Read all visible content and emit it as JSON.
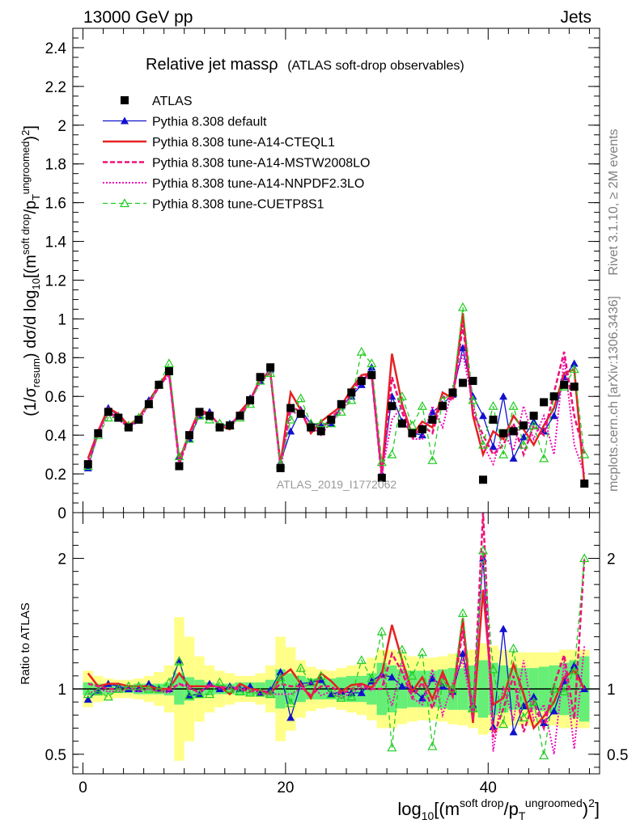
{
  "header": {
    "energy_label": "13000 GeV pp",
    "category_label": "Jets"
  },
  "side_labels": {
    "rivet": "Rivet 3.1.10, ≥ 2M events",
    "mcplots": "mcplots.cern.ch [arXiv:1306.3436]"
  },
  "analysis_id": "ATLAS_2019_I1772062",
  "chart_data": [
    {
      "type": "line",
      "title_main": "Relative jet massρ",
      "title_sub": "(ATLAS soft-drop observables)",
      "ylabel": "(1/σ_resum) dσ/d log10[(m^soft drop/pT^ungroomed)^2]",
      "xlabel": "log10[(m^soft drop/pT^ungroomed)^2]",
      "xlim": [
        -1,
        51
      ],
      "ylim": [
        0,
        2.5
      ],
      "yticks": [
        "0",
        "0.2",
        "0.4",
        "0.6",
        "0.8",
        "1",
        "1.2",
        "1.4",
        "1.6",
        "1.8",
        "2",
        "2.2",
        "2.4"
      ],
      "xticks": [
        "0",
        "20",
        "40"
      ],
      "legend_position": "top-left",
      "x": [
        0.5,
        1.5,
        2.5,
        3.5,
        4.5,
        5.5,
        6.5,
        7.5,
        8.5,
        9.5,
        10.5,
        11.5,
        12.5,
        13.5,
        14.5,
        15.5,
        16.5,
        17.5,
        18.5,
        19.5,
        20.5,
        21.5,
        22.5,
        23.5,
        24.5,
        25.5,
        26.5,
        27.5,
        28.5,
        29.5,
        30.5,
        31.5,
        32.5,
        33.5,
        34.5,
        35.5,
        36.5,
        37.5,
        38.5,
        39.5,
        40.5,
        41.5,
        42.5,
        43.5,
        44.5,
        45.5,
        46.5,
        47.5,
        48.5,
        49.5
      ],
      "series": [
        {
          "name": "ATLAS",
          "color": "#000000",
          "values": [
            0.25,
            0.41,
            0.52,
            0.49,
            0.44,
            0.48,
            0.56,
            0.66,
            0.73,
            0.24,
            0.4,
            0.52,
            0.5,
            0.44,
            0.45,
            0.5,
            0.58,
            0.7,
            0.75,
            0.23,
            0.54,
            0.51,
            0.44,
            0.42,
            0.48,
            0.56,
            0.62,
            0.68,
            0.71,
            0.18,
            0.55,
            0.46,
            0.41,
            0.43,
            0.48,
            0.55,
            0.62,
            0.67,
            0.68,
            0.17,
            0.48,
            0.41,
            0.42,
            0.45,
            0.5,
            0.57,
            0.6,
            0.66,
            0.65,
            0.15
          ]
        },
        {
          "name": "Pythia 8.308 default",
          "color": "#1111cc",
          "values": [
            0.23,
            0.41,
            0.54,
            0.5,
            0.44,
            0.48,
            0.58,
            0.66,
            0.73,
            0.29,
            0.38,
            0.5,
            0.52,
            0.44,
            0.46,
            0.5,
            0.59,
            0.68,
            0.74,
            0.26,
            0.42,
            0.53,
            0.46,
            0.45,
            0.46,
            0.55,
            0.6,
            0.66,
            0.75,
            0.2,
            0.6,
            0.47,
            0.41,
            0.4,
            0.52,
            0.56,
            0.61,
            0.85,
            0.6,
            0.5,
            0.34,
            0.6,
            0.28,
            0.39,
            0.47,
            0.42,
            0.5,
            0.7,
            0.77,
            0.15
          ]
        },
        {
          "name": "Pythia 8.308 tune-A14-CTEQL1",
          "color": "#e52222",
          "values": [
            0.28,
            0.42,
            0.54,
            0.51,
            0.45,
            0.49,
            0.57,
            0.66,
            0.73,
            0.27,
            0.41,
            0.53,
            0.51,
            0.45,
            0.43,
            0.52,
            0.58,
            0.69,
            0.72,
            0.25,
            0.62,
            0.53,
            0.41,
            0.47,
            0.51,
            0.55,
            0.64,
            0.71,
            0.72,
            0.2,
            0.82,
            0.56,
            0.4,
            0.47,
            0.44,
            0.62,
            0.59,
            1.03,
            0.5,
            0.3,
            0.42,
            0.38,
            0.5,
            0.43,
            0.35,
            0.45,
            0.54,
            0.72,
            0.74,
            0.15
          ]
        },
        {
          "name": "Pythia 8.308 tune-A14-MSTW2008LO",
          "color": "#ee1177",
          "values": [
            0.26,
            0.42,
            0.52,
            0.49,
            0.44,
            0.48,
            0.56,
            0.65,
            0.72,
            0.25,
            0.4,
            0.51,
            0.51,
            0.45,
            0.45,
            0.5,
            0.57,
            0.69,
            0.73,
            0.24,
            0.55,
            0.52,
            0.42,
            0.43,
            0.49,
            0.54,
            0.62,
            0.7,
            0.71,
            0.18,
            0.7,
            0.52,
            0.38,
            0.45,
            0.41,
            0.6,
            0.58,
            0.97,
            0.52,
            0.4,
            0.3,
            0.35,
            0.46,
            0.3,
            0.45,
            0.4,
            0.62,
            0.83,
            0.5,
            0.3
          ]
        },
        {
          "name": "Pythia 8.308 tune-A14-NNPDF2.3LO",
          "color": "#ee11bb",
          "values": [
            0.24,
            0.41,
            0.51,
            0.48,
            0.44,
            0.47,
            0.56,
            0.65,
            0.71,
            0.25,
            0.41,
            0.5,
            0.52,
            0.44,
            0.46,
            0.5,
            0.58,
            0.67,
            0.72,
            0.22,
            0.52,
            0.51,
            0.46,
            0.4,
            0.47,
            0.52,
            0.6,
            0.69,
            0.7,
            0.2,
            0.48,
            0.55,
            0.38,
            0.38,
            0.55,
            0.44,
            0.65,
            0.82,
            0.56,
            0.35,
            0.25,
            0.42,
            0.32,
            0.55,
            0.38,
            0.5,
            0.3,
            0.8,
            0.35,
            0.2
          ]
        },
        {
          "name": "Pythia 8.308 tune-CUETP8S1",
          "color": "#22cc22",
          "values": [
            0.24,
            0.4,
            0.49,
            0.49,
            0.45,
            0.49,
            0.56,
            0.66,
            0.77,
            0.29,
            0.38,
            0.5,
            0.48,
            0.46,
            0.45,
            0.49,
            0.56,
            0.68,
            0.72,
            0.25,
            0.48,
            0.59,
            0.46,
            0.46,
            0.46,
            0.52,
            0.58,
            0.83,
            0.77,
            0.26,
            0.3,
            0.6,
            0.45,
            0.55,
            0.27,
            0.58,
            0.62,
            1.06,
            0.58,
            0.35,
            0.55,
            0.3,
            0.55,
            0.35,
            0.45,
            0.28,
            0.6,
            0.65,
            0.74,
            0.3
          ]
        }
      ]
    },
    {
      "type": "line",
      "ylabel": "Ratio to ATLAS",
      "ylim": [
        0.35,
        2.35
      ],
      "yticks": [
        "0.5",
        "1",
        "2"
      ],
      "reference_line": 1,
      "band_colors": {
        "stat": "#66ee77",
        "total": "#ffff88"
      },
      "band_stat_half_width": [
        0.05,
        0.04,
        0.04,
        0.03,
        0.03,
        0.04,
        0.04,
        0.04,
        0.05,
        0.12,
        0.09,
        0.07,
        0.05,
        0.04,
        0.04,
        0.05,
        0.05,
        0.05,
        0.07,
        0.15,
        0.12,
        0.1,
        0.08,
        0.08,
        0.08,
        0.09,
        0.1,
        0.1,
        0.12,
        0.2,
        0.18,
        0.15,
        0.14,
        0.14,
        0.14,
        0.15,
        0.16,
        0.16,
        0.18,
        0.22,
        0.2,
        0.18,
        0.16,
        0.16,
        0.16,
        0.17,
        0.18,
        0.2,
        0.22,
        0.25
      ],
      "band_total_half_width": [
        0.14,
        0.1,
        0.08,
        0.07,
        0.07,
        0.08,
        0.1,
        0.13,
        0.18,
        0.55,
        0.4,
        0.25,
        0.18,
        0.14,
        0.12,
        0.1,
        0.1,
        0.12,
        0.18,
        0.4,
        0.32,
        0.22,
        0.17,
        0.15,
        0.14,
        0.16,
        0.18,
        0.2,
        0.24,
        0.3,
        0.3,
        0.27,
        0.25,
        0.24,
        0.24,
        0.25,
        0.27,
        0.28,
        0.3,
        0.35,
        0.33,
        0.3,
        0.28,
        0.28,
        0.28,
        0.28,
        0.28,
        0.3,
        0.3,
        0.3
      ],
      "series": [
        {
          "name": "Pythia 8.308 default",
          "values": [
            0.92,
            0.99,
            1.04,
            1.02,
            1.0,
            1.0,
            1.04,
            1.0,
            1.0,
            1.22,
            0.95,
            0.96,
            1.04,
            1.0,
            1.02,
            1.0,
            1.02,
            0.97,
            0.99,
            1.13,
            0.78,
            1.04,
            1.05,
            1.07,
            0.96,
            0.98,
            0.97,
            0.97,
            1.06,
            1.11,
            1.09,
            1.02,
            1.0,
            0.93,
            1.08,
            1.02,
            0.98,
            1.27,
            0.88,
            2.0,
            0.71,
            1.46,
            0.67,
            0.87,
            0.94,
            0.74,
            0.83,
            1.06,
            1.18,
            1.0
          ]
        },
        {
          "name": "Pythia 8.308 tune-A14-CTEQL1",
          "values": [
            1.12,
            1.02,
            1.04,
            1.04,
            1.02,
            1.02,
            1.02,
            1.0,
            1.0,
            1.12,
            1.02,
            1.02,
            1.02,
            1.02,
            0.96,
            1.04,
            1.0,
            0.99,
            0.96,
            1.09,
            1.15,
            1.04,
            0.93,
            1.12,
            1.06,
            0.98,
            1.03,
            1.04,
            1.01,
            1.11,
            1.49,
            1.22,
            0.98,
            1.09,
            0.92,
            1.13,
            0.95,
            1.54,
            0.74,
            1.76,
            0.88,
            0.93,
            1.19,
            0.96,
            0.7,
            0.79,
            0.9,
            1.09,
            1.14,
            1.0
          ]
        },
        {
          "name": "Pythia 8.308 tune-A14-MSTW2008LO",
          "values": [
            1.04,
            1.02,
            1.0,
            1.0,
            1.0,
            1.0,
            1.0,
            0.98,
            0.99,
            1.04,
            1.0,
            0.98,
            1.02,
            1.02,
            1.0,
            1.0,
            0.98,
            0.99,
            0.97,
            1.04,
            1.02,
            1.02,
            0.95,
            1.02,
            1.02,
            0.96,
            1.0,
            1.03,
            1.0,
            1.0,
            1.27,
            1.13,
            0.93,
            1.05,
            0.85,
            1.09,
            0.94,
            1.45,
            0.76,
            2.35,
            0.63,
            0.85,
            1.1,
            0.67,
            0.9,
            0.7,
            1.03,
            1.26,
            0.77,
            2.0
          ]
        },
        {
          "name": "Pythia 8.308 tune-A14-NNPDF2.3LO",
          "values": [
            0.96,
            1.0,
            0.98,
            0.98,
            1.0,
            0.98,
            1.0,
            0.98,
            0.97,
            1.04,
            1.02,
            0.96,
            1.04,
            1.0,
            1.02,
            1.0,
            1.0,
            0.96,
            0.96,
            0.96,
            0.96,
            1.0,
            1.05,
            0.95,
            0.98,
            0.93,
            0.97,
            1.01,
            0.99,
            1.11,
            0.87,
            1.2,
            0.93,
            0.88,
            1.15,
            0.8,
            1.05,
            1.22,
            0.82,
            2.06,
            0.52,
            1.02,
            0.76,
            1.22,
            0.76,
            0.88,
            0.5,
            1.21,
            0.54,
            1.33
          ]
        },
        {
          "name": "Pythia 8.308 tune-CUETP8S1",
          "values": [
            0.96,
            0.98,
            0.94,
            1.0,
            1.02,
            1.02,
            1.0,
            1.0,
            1.05,
            1.21,
            0.95,
            0.96,
            0.96,
            1.05,
            1.0,
            0.98,
            0.97,
            0.97,
            0.96,
            1.09,
            0.89,
            1.16,
            1.05,
            1.1,
            0.96,
            0.93,
            0.94,
            1.22,
            1.08,
            1.44,
            0.55,
            1.3,
            1.1,
            1.28,
            0.56,
            1.05,
            1.0,
            1.58,
            0.85,
            2.06,
            1.15,
            0.73,
            1.31,
            0.78,
            0.9,
            0.49,
            1.0,
            0.98,
            1.14,
            2.0
          ]
        }
      ]
    }
  ]
}
